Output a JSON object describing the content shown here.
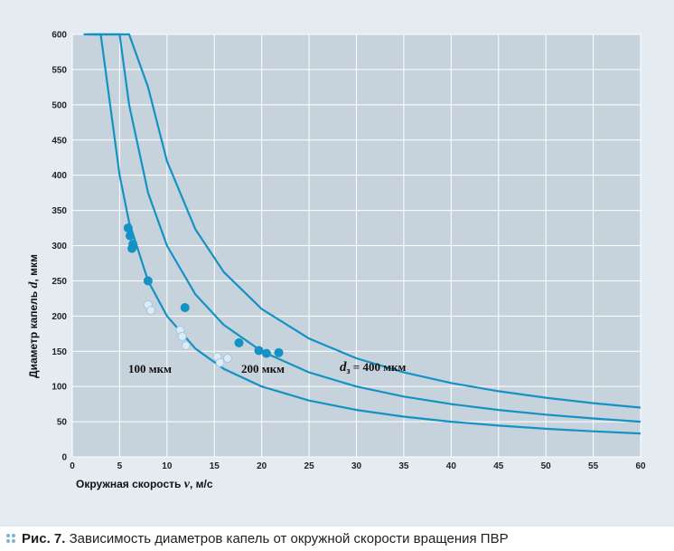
{
  "caption": {
    "figure_number": "Рис. 7.",
    "text": "Зависимость диаметров капель от окружной скорости вращения ПВР"
  },
  "colors": {
    "plot_background": "#c6d2dc",
    "page_background": "#e4ebf1",
    "grid": "#ffffff",
    "curve": "#1592c4",
    "filled_marker": "#1592c4",
    "hollow_marker_fill": "#dcebf5",
    "hollow_marker_stroke": "#9fc9e2",
    "caption_dots": "#6fb8dc"
  },
  "chart_data": {
    "type": "scatter",
    "xlabel": {
      "main": "Окружная скорость ",
      "var": "v",
      "unit": ", м/с"
    },
    "ylabel": {
      "main": "Диаметр капель ",
      "var": "d",
      "unit": ", мкм"
    },
    "xlim": [
      0,
      60
    ],
    "ylim": [
      0,
      600
    ],
    "xticks": [
      0,
      5,
      10,
      15,
      20,
      25,
      30,
      35,
      40,
      45,
      50,
      55,
      60
    ],
    "yticks": [
      0,
      50,
      100,
      150,
      200,
      250,
      300,
      350,
      400,
      450,
      500,
      550,
      600
    ],
    "grid": true,
    "curves": [
      {
        "label": "100 мкм",
        "k": 2000,
        "points_x": [
          1.2,
          1.5,
          1.8,
          2,
          2.5,
          3,
          4,
          5,
          6,
          8,
          10,
          13,
          16,
          20,
          25,
          30,
          35,
          40,
          45,
          50,
          55,
          60
        ]
      },
      {
        "label": "200 мкм",
        "k": 3000,
        "points_x": [
          1.6,
          1.8,
          2,
          2.5,
          3,
          4,
          5,
          6,
          8,
          10,
          13,
          16,
          20,
          25,
          30,
          35,
          40,
          45,
          50,
          55,
          60
        ]
      },
      {
        "label_prefix": "d",
        "label_sub": "з",
        "label_suffix": " = 400 мкм",
        "k": 4200,
        "points_x": [
          2.2,
          2.5,
          3,
          3.5,
          4,
          5,
          6,
          8,
          10,
          13,
          16,
          20,
          25,
          30,
          35,
          40,
          45,
          50,
          55,
          60
        ]
      }
    ],
    "series": [
      {
        "marker": "filled",
        "points": [
          [
            5.9,
            325
          ],
          [
            6.1,
            314
          ],
          [
            6.3,
            296
          ],
          [
            6.4,
            302
          ],
          [
            8.0,
            250
          ],
          [
            11.9,
            212
          ],
          [
            17.6,
            162
          ],
          [
            19.7,
            151
          ],
          [
            20.5,
            147
          ],
          [
            21.8,
            148
          ]
        ]
      },
      {
        "marker": "hollow",
        "points": [
          [
            8.0,
            216
          ],
          [
            8.3,
            208
          ],
          [
            11.4,
            180
          ],
          [
            11.6,
            171
          ],
          [
            12.0,
            158
          ],
          [
            15.3,
            142
          ],
          [
            15.6,
            134
          ],
          [
            16.4,
            140
          ]
        ]
      }
    ]
  }
}
